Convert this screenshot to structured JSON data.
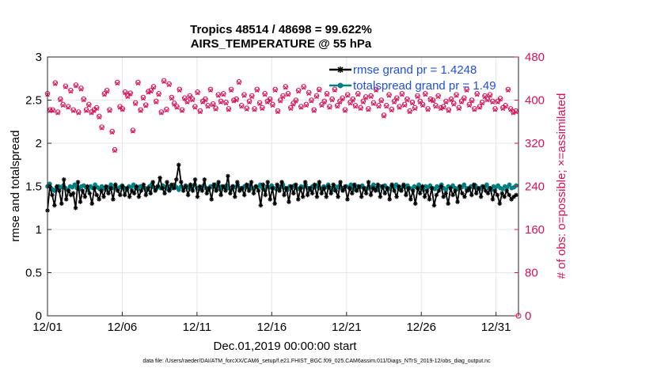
{
  "chart_data": {
    "type": "line",
    "title": "Tropics 48514 / 48698 = 99.622%",
    "subtitle": "AIRS_TEMPERATURE @ 55 hPa",
    "xlabel": "Dec.01,2019 00:00:00 start",
    "ylabel": "rmse and totalspread",
    "ylabel_right": "# of obs: o=possible; ×=assimilated",
    "footer": "data file: /Users/raeder/DAI/ATM_forcXX/CAM6_setup/f.e21.FHIST_BGC.f09_025.CAM6assim.011/Diags_NTrS_2019-12/obs_diag_output.nc",
    "xlim": [
      0,
      31.5
    ],
    "ylim": [
      0,
      3
    ],
    "ylim_right": [
      0,
      480
    ],
    "x_ticks": [
      0,
      5,
      10,
      15,
      20,
      25,
      30
    ],
    "x_tick_labels": [
      "12/01",
      "12/06",
      "12/11",
      "12/16",
      "12/21",
      "12/26",
      "12/31"
    ],
    "y_ticks": [
      0,
      0.5,
      1,
      1.5,
      2,
      2.5,
      3
    ],
    "y_tick_labels": [
      "0",
      "0.5",
      "1",
      "1.5",
      "2",
      "2.5",
      "3"
    ],
    "y_ticks_right": [
      0,
      80,
      160,
      240,
      320,
      400,
      480
    ],
    "y_tick_labels_right": [
      "0",
      "80",
      "160",
      "240",
      "320",
      "400",
      "480"
    ],
    "grid": true,
    "legend_position": "top-right",
    "series": [
      {
        "name": "rmse grand pr = 1.4248",
        "color": "#000000",
        "marker": "star",
        "axis": "left",
        "values": [
          1.22,
          1.5,
          1.4,
          1.28,
          1.5,
          1.45,
          1.3,
          1.58,
          1.35,
          1.45,
          1.4,
          1.42,
          1.25,
          1.55,
          1.32,
          1.45,
          1.38,
          1.5,
          1.42,
          1.3,
          1.48,
          1.4,
          1.35,
          1.45,
          1.38,
          1.5,
          1.42,
          1.48,
          1.35,
          1.52,
          1.45,
          1.4,
          1.5,
          1.4,
          1.48,
          1.38,
          1.45,
          1.42,
          1.5,
          1.38,
          1.45,
          1.52,
          1.4,
          1.48,
          1.42,
          1.55,
          1.45,
          1.5,
          1.6,
          1.48,
          1.42,
          1.55,
          1.45,
          1.52,
          1.48,
          1.58,
          1.75,
          1.55,
          1.45,
          1.5,
          1.4,
          1.52,
          1.45,
          1.58,
          1.38,
          1.5,
          1.45,
          1.58,
          1.42,
          1.48,
          1.35,
          1.52,
          1.45,
          1.55,
          1.4,
          1.5,
          1.45,
          1.62,
          1.42,
          1.5,
          1.38,
          1.55,
          1.45,
          1.48,
          1.4,
          1.52,
          1.45,
          1.55,
          1.42,
          1.5,
          1.45,
          1.28,
          1.52,
          1.4,
          1.55,
          1.35,
          1.48,
          1.3,
          1.52,
          1.45,
          1.55,
          1.4,
          1.48,
          1.32,
          1.5,
          1.42,
          1.52,
          1.35,
          1.48,
          1.38,
          1.55,
          1.4,
          1.48,
          1.42,
          1.52,
          1.38,
          1.55,
          1.42,
          1.48,
          1.38,
          1.5,
          1.42,
          1.52,
          1.45,
          1.38,
          1.55,
          1.45,
          1.5,
          1.35,
          1.48,
          1.42,
          1.52,
          1.45,
          1.5,
          1.38,
          1.48,
          1.42,
          1.55,
          1.4,
          1.48,
          1.45,
          1.52,
          1.38,
          1.5,
          1.42,
          1.48,
          1.35,
          1.52,
          1.45,
          1.38,
          1.5,
          1.45,
          1.52,
          1.4,
          1.48,
          1.35,
          1.45,
          1.3,
          1.48,
          1.42,
          1.5,
          1.38,
          1.45,
          1.35,
          1.48,
          1.28,
          1.4,
          1.45,
          1.5,
          1.38,
          1.42,
          1.3,
          1.48,
          1.4,
          1.45,
          1.32,
          1.5,
          1.42,
          1.38,
          1.45,
          1.48,
          1.4,
          1.52,
          1.42,
          1.48,
          1.38,
          1.5,
          1.45,
          1.42,
          1.48,
          1.35,
          1.45,
          1.4,
          1.3,
          1.42,
          1.38,
          1.45,
          1.4,
          1.35,
          1.38,
          1.4
        ]
      },
      {
        "name": "totalspread grand pr = 1.49",
        "color": "#008080",
        "marker": "circle",
        "axis": "left",
        "values": [
          1.5,
          1.53,
          1.47,
          1.45,
          1.48,
          1.5,
          1.49,
          1.51,
          1.48,
          1.46,
          1.5,
          1.49,
          1.52,
          1.48,
          1.47,
          1.5,
          1.51,
          1.49,
          1.46,
          1.5,
          1.48,
          1.52,
          1.49,
          1.47,
          1.5,
          1.48,
          1.46,
          1.49,
          1.52,
          1.48,
          1.5,
          1.47,
          1.49,
          1.51,
          1.48,
          1.46,
          1.5,
          1.49,
          1.52,
          1.48,
          1.47,
          1.5,
          1.49,
          1.48,
          1.46,
          1.5,
          1.52,
          1.49,
          1.47,
          1.5,
          1.48,
          1.51,
          1.49,
          1.47,
          1.5,
          1.48,
          1.52,
          1.49,
          1.46,
          1.5,
          1.48,
          1.51,
          1.49,
          1.47,
          1.5,
          1.52,
          1.48,
          1.47,
          1.49,
          1.51,
          1.48,
          1.46,
          1.5,
          1.49,
          1.52,
          1.48,
          1.47,
          1.5,
          1.49,
          1.51,
          1.48,
          1.46,
          1.5,
          1.49,
          1.52,
          1.48,
          1.47,
          1.5,
          1.49,
          1.51,
          1.48,
          1.47,
          1.5,
          1.49,
          1.52,
          1.48,
          1.46,
          1.5,
          1.49,
          1.51,
          1.48,
          1.47,
          1.5,
          1.49,
          1.52,
          1.48,
          1.46,
          1.5,
          1.49,
          1.51,
          1.48,
          1.47,
          1.5,
          1.49,
          1.52,
          1.48,
          1.46,
          1.5,
          1.49,
          1.51,
          1.48,
          1.47,
          1.5,
          1.49,
          1.52,
          1.48,
          1.46,
          1.5,
          1.49,
          1.51,
          1.48,
          1.47,
          1.5,
          1.49,
          1.52,
          1.48,
          1.46,
          1.5,
          1.49,
          1.51,
          1.48,
          1.47,
          1.5,
          1.49,
          1.52,
          1.48,
          1.46,
          1.5,
          1.49,
          1.51,
          1.48,
          1.47,
          1.5,
          1.49,
          1.52,
          1.48,
          1.46,
          1.5,
          1.49,
          1.51,
          1.48,
          1.47,
          1.5,
          1.49,
          1.52,
          1.48,
          1.46,
          1.5,
          1.49,
          1.51,
          1.48,
          1.47,
          1.5,
          1.49,
          1.52,
          1.48,
          1.46,
          1.5,
          1.49,
          1.51,
          1.48,
          1.47,
          1.5,
          1.49,
          1.52,
          1.48,
          1.46,
          1.5,
          1.49,
          1.51,
          1.48,
          1.47,
          1.5,
          1.49,
          1.52,
          1.48,
          1.46,
          1.5,
          1.49,
          1.51,
          1.48,
          1.47,
          1.5,
          1.49,
          1.52,
          1.48,
          1.49,
          1.51
        ]
      },
      {
        "name": "# obs possible",
        "color": "#d6105a",
        "marker": "circle-open",
        "axis": "right",
        "values": [
          412,
          382,
          382,
          432,
          378,
          402,
          392,
          426,
          388,
          418,
          382,
          428,
          378,
          422,
          402,
          382,
          392,
          378,
          382,
          386,
          370,
          350,
          412,
          418,
          382,
          342,
          308,
          433,
          388,
          384,
          415,
          408,
          413,
          344,
          395,
          433,
          382,
          405,
          391,
          416,
          418,
          425,
          398,
          412,
          378,
          436,
          383,
          430,
          405,
          394,
          388,
          420,
          382,
          404,
          398,
          408,
          402,
          388,
          415,
          380,
          398,
          402,
          390,
          420,
          393,
          385,
          410,
          398,
          412,
          396,
          384,
          420,
          400,
          402,
          434,
          390,
          410,
          385,
          398,
          408,
          384,
          420,
          395,
          386,
          412,
          398,
          402,
          392,
          420,
          380,
          400,
          408,
          425,
          412,
          386,
          394,
          400,
          418,
          388,
          425,
          392,
          414,
          400,
          382,
          408,
          420,
          392,
          398,
          412,
          388,
          402,
          420,
          390,
          398,
          404,
          382,
          410,
          396,
          402,
          390,
          412,
          386,
          398,
          406,
          384,
          408,
          395,
          420,
          390,
          400,
          372,
          390,
          410,
          383,
          398,
          404,
          388,
          412,
          392,
          402,
          380,
          396,
          386,
          408,
          398,
          392,
          412,
          384,
          402,
          400,
          390,
          408,
          386,
          388,
          398,
          382,
          402,
          394,
          410,
          386,
          398,
          404,
          420,
          392,
          400,
          384,
          412,
          388,
          396,
          408,
          402,
          410,
          398,
          384,
          398,
          403,
          386,
          390,
          420,
          384,
          378,
          380
        ]
      },
      {
        "name": "# obs assimilated",
        "color": "#d6105a",
        "marker": "x",
        "axis": "right",
        "values": [
          410,
          380,
          380,
          430,
          376,
          400,
          390,
          424,
          386,
          416,
          380,
          426,
          376,
          420,
          400,
          380,
          390,
          376,
          380,
          384,
          368,
          348,
          410,
          416,
          380,
          340,
          306,
          431,
          386,
          382,
          413,
          406,
          411,
          342,
          393,
          431,
          380,
          403,
          389,
          414,
          416,
          423,
          396,
          410,
          376,
          434,
          381,
          428,
          403,
          392,
          386,
          418,
          380,
          402,
          396,
          406,
          400,
          386,
          413,
          378,
          396,
          400,
          388,
          418,
          391,
          383,
          408,
          396,
          410,
          394,
          382,
          418,
          398,
          400,
          432,
          388,
          408,
          383,
          396,
          406,
          382,
          418,
          393,
          384,
          410,
          396,
          400,
          390,
          418,
          378,
          398,
          406,
          423,
          410,
          384,
          392,
          398,
          416,
          386,
          423,
          390,
          412,
          398,
          380,
          406,
          418,
          390,
          396,
          410,
          386,
          400,
          418,
          388,
          396,
          402,
          380,
          408,
          394,
          400,
          388,
          410,
          384,
          396,
          404,
          382,
          406,
          393,
          418,
          388,
          398,
          370,
          388,
          408,
          381,
          396,
          402,
          386,
          410,
          390,
          400,
          378,
          394,
          384,
          406,
          396,
          390,
          410,
          382,
          400,
          398,
          388,
          406,
          384,
          386,
          396,
          380,
          400,
          392,
          408,
          384,
          396,
          402,
          418,
          390,
          398,
          382,
          410,
          386,
          394,
          406,
          400,
          408,
          396,
          382,
          396,
          401,
          384,
          388,
          418,
          382,
          376,
          378
        ]
      }
    ]
  }
}
